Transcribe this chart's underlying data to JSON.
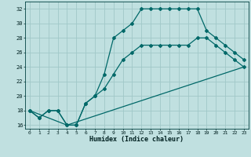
{
  "xlabel": "Humidex (Indice chaleur)",
  "bg_color": "#c0e0e0",
  "line_color": "#006868",
  "grid_color": "#a0c8c8",
  "ylim": [
    15.5,
    33
  ],
  "xlim": [
    -0.5,
    23.5
  ],
  "yticks": [
    16,
    18,
    20,
    22,
    24,
    26,
    28,
    30,
    32
  ],
  "xticks": [
    0,
    1,
    2,
    3,
    4,
    5,
    6,
    7,
    8,
    9,
    10,
    11,
    12,
    13,
    14,
    15,
    16,
    17,
    18,
    19,
    20,
    21,
    22,
    23
  ],
  "line1_x": [
    0,
    1,
    2,
    3,
    4,
    5,
    6,
    7,
    8,
    9,
    10,
    11,
    12,
    13,
    14,
    15,
    16,
    17,
    18,
    19,
    20,
    21,
    22,
    23
  ],
  "line1_y": [
    18,
    17,
    18,
    18,
    16,
    16,
    19,
    20,
    23,
    28,
    29,
    30,
    32,
    32,
    32,
    32,
    32,
    32,
    32,
    29,
    28,
    27,
    26,
    25
  ],
  "line2_x": [
    0,
    1,
    2,
    3,
    4,
    5,
    6,
    7,
    8,
    9,
    10,
    11,
    12,
    13,
    14,
    15,
    16,
    17,
    18,
    19,
    20,
    21,
    22,
    23
  ],
  "line2_y": [
    18,
    17,
    18,
    18,
    16,
    16,
    19,
    20,
    21,
    23,
    25,
    26,
    27,
    27,
    27,
    27,
    27,
    27,
    28,
    28,
    27,
    26,
    25,
    24
  ],
  "line3_x": [
    0,
    4,
    23
  ],
  "line3_y": [
    18,
    16,
    24
  ]
}
